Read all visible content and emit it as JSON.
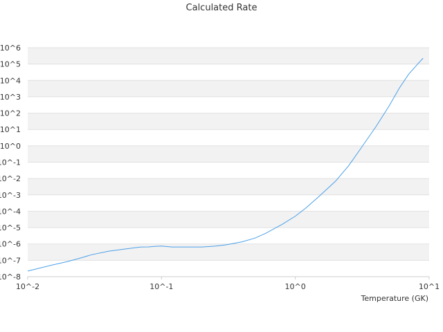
{
  "chart_data": {
    "type": "line",
    "title": "Calculated Rate",
    "xlabel": "Temperature (GK)",
    "ylabel": "",
    "x_scale": "log",
    "y_scale": "log",
    "xlim": [
      0.01,
      10
    ],
    "ylim": [
      1e-08,
      1000000.0
    ],
    "x_tick_labels": [
      "10^-2",
      "10^-1",
      "10^0",
      "10^1"
    ],
    "y_tick_labels": [
      "10^-8",
      "10^-7",
      "10^-6",
      "10^-5",
      "10^-4",
      "10^-3",
      "10^-2",
      "10^-1",
      "10^0",
      "10^1",
      "10^2",
      "10^3",
      "10^4",
      "10^5",
      "10^6"
    ],
    "grid": "alternating horizontal bands",
    "legend": "none",
    "series": [
      {
        "color": "#4a9fe8",
        "points": [
          [
            0.01,
            2.2e-08
          ],
          [
            0.012,
            3.2e-08
          ],
          [
            0.015,
            5e-08
          ],
          [
            0.02,
            8.5e-08
          ],
          [
            0.025,
            1.4e-07
          ],
          [
            0.03,
            2.2e-07
          ],
          [
            0.04,
            3.6e-07
          ],
          [
            0.05,
            4.6e-07
          ],
          [
            0.06,
            5.6e-07
          ],
          [
            0.07,
            6.5e-07
          ],
          [
            0.08,
            6.6e-07
          ],
          [
            0.09,
            7.2e-07
          ],
          [
            0.1,
            7.4e-07
          ],
          [
            0.12,
            6.5e-07
          ],
          [
            0.15,
            6.5e-07
          ],
          [
            0.2,
            6.5e-07
          ],
          [
            0.25,
            7.3e-07
          ],
          [
            0.3,
            8.7e-07
          ],
          [
            0.35,
            1.1e-06
          ],
          [
            0.4,
            1.35e-06
          ],
          [
            0.5,
            2.3e-06
          ],
          [
            0.6,
            4.5e-06
          ],
          [
            0.8,
            1.6e-05
          ],
          [
            1.0,
            5e-05
          ],
          [
            1.2,
            0.00016
          ],
          [
            1.5,
            0.0008
          ],
          [
            2.0,
            0.007
          ],
          [
            2.5,
            0.06
          ],
          [
            3.0,
            0.5
          ],
          [
            4.0,
            15.0
          ],
          [
            5.0,
            260.0
          ],
          [
            6.0,
            3500.0
          ],
          [
            7.0,
            23000.0
          ],
          [
            8.0,
            80000.0
          ],
          [
            9.0,
            230000.0
          ]
        ]
      }
    ]
  }
}
